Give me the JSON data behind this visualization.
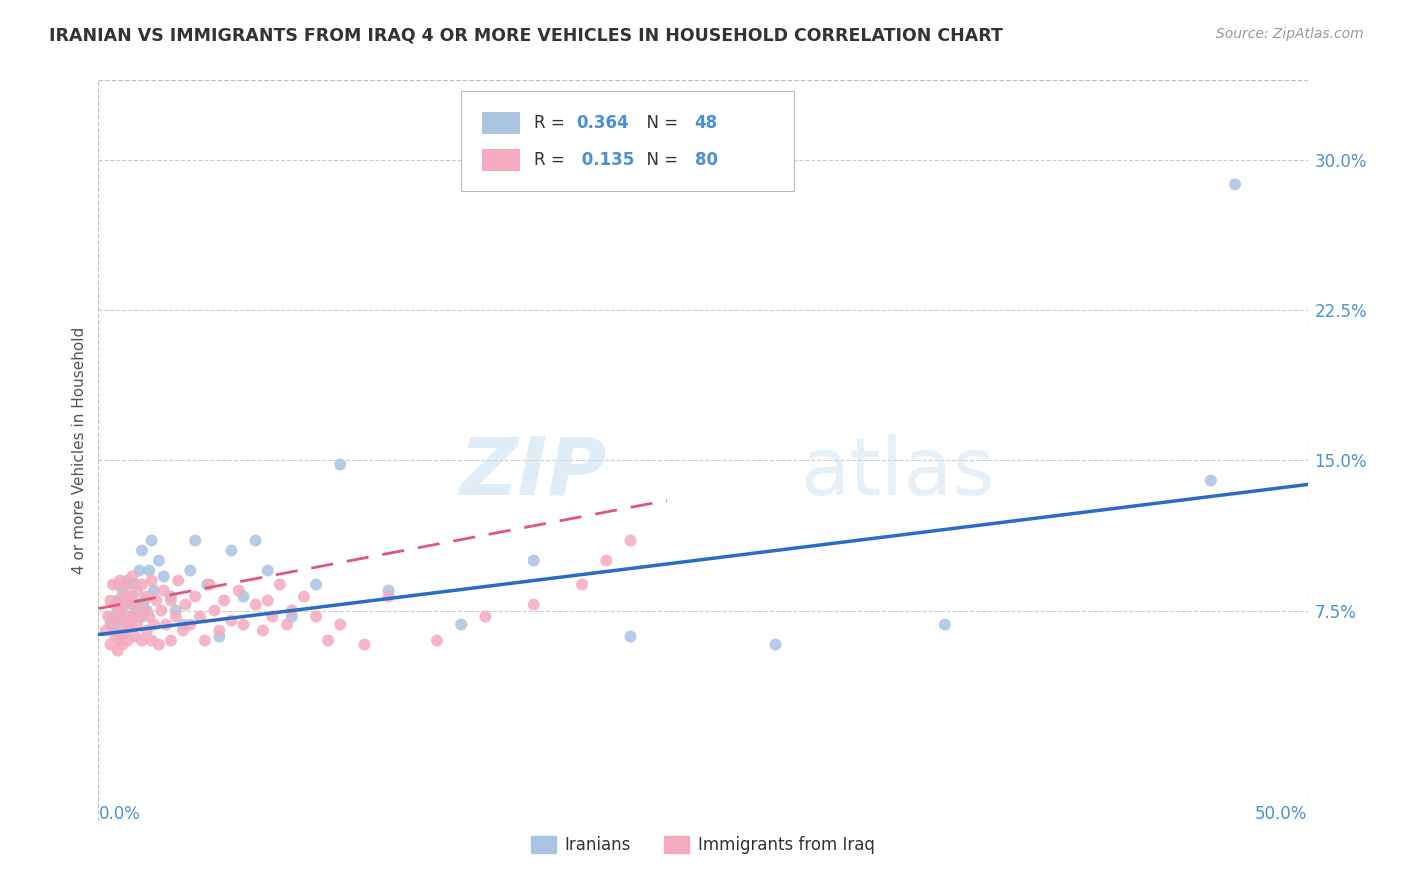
{
  "title": "IRANIAN VS IMMIGRANTS FROM IRAQ 4 OR MORE VEHICLES IN HOUSEHOLD CORRELATION CHART",
  "source": "Source: ZipAtlas.com",
  "ylabel": "4 or more Vehicles in Household",
  "yticks": [
    "7.5%",
    "15.0%",
    "22.5%",
    "30.0%"
  ],
  "ytick_vals": [
    0.075,
    0.15,
    0.225,
    0.3
  ],
  "xrange": [
    0.0,
    0.5
  ],
  "yrange": [
    -0.03,
    0.34
  ],
  "r_iranian": "0.364",
  "n_iranian": "48",
  "r_iraqi": "0.135",
  "n_iraqi": "80",
  "color_iranian": "#aac4e2",
  "color_iraqi": "#f5aabf",
  "color_iranian_line": "#2b6cc4",
  "color_iraqi_line": "#e05878",
  "legend_label_iranian": "Iranians",
  "legend_label_iraqi": "Immigrants from Iraq",
  "watermark_zip": "ZIP",
  "watermark_atlas": "atlas",
  "title_color": "#333333",
  "axis_label_color": "#4a90d9",
  "iranians_x": [
    0.005,
    0.006,
    0.007,
    0.008,
    0.008,
    0.009,
    0.01,
    0.01,
    0.011,
    0.012,
    0.012,
    0.013,
    0.014,
    0.015,
    0.015,
    0.016,
    0.017,
    0.018,
    0.018,
    0.019,
    0.02,
    0.021,
    0.022,
    0.023,
    0.025,
    0.027,
    0.03,
    0.032,
    0.035,
    0.038,
    0.04,
    0.045,
    0.05,
    0.055,
    0.06,
    0.065,
    0.07,
    0.08,
    0.09,
    0.1,
    0.12,
    0.15,
    0.18,
    0.22,
    0.28,
    0.35,
    0.46,
    0.47
  ],
  "iranians_y": [
    0.068,
    0.072,
    0.065,
    0.08,
    0.075,
    0.07,
    0.063,
    0.085,
    0.078,
    0.072,
    0.09,
    0.068,
    0.082,
    0.074,
    0.088,
    0.078,
    0.095,
    0.072,
    0.105,
    0.08,
    0.075,
    0.095,
    0.11,
    0.085,
    0.1,
    0.092,
    0.082,
    0.075,
    0.068,
    0.095,
    0.11,
    0.088,
    0.062,
    0.105,
    0.082,
    0.11,
    0.095,
    0.072,
    0.088,
    0.148,
    0.085,
    0.068,
    0.1,
    0.062,
    0.058,
    0.068,
    0.14,
    0.288
  ],
  "iraqis_x": [
    0.003,
    0.004,
    0.005,
    0.005,
    0.006,
    0.006,
    0.007,
    0.007,
    0.008,
    0.008,
    0.008,
    0.009,
    0.009,
    0.009,
    0.01,
    0.01,
    0.01,
    0.011,
    0.011,
    0.012,
    0.012,
    0.013,
    0.013,
    0.014,
    0.014,
    0.015,
    0.015,
    0.016,
    0.016,
    0.017,
    0.018,
    0.018,
    0.019,
    0.02,
    0.02,
    0.021,
    0.022,
    0.022,
    0.023,
    0.024,
    0.025,
    0.026,
    0.027,
    0.028,
    0.03,
    0.03,
    0.032,
    0.033,
    0.035,
    0.036,
    0.038,
    0.04,
    0.042,
    0.044,
    0.046,
    0.048,
    0.05,
    0.052,
    0.055,
    0.058,
    0.06,
    0.065,
    0.068,
    0.07,
    0.072,
    0.075,
    0.078,
    0.08,
    0.085,
    0.09,
    0.095,
    0.1,
    0.11,
    0.12,
    0.14,
    0.16,
    0.18,
    0.2,
    0.21,
    0.22
  ],
  "iraqis_y": [
    0.065,
    0.072,
    0.058,
    0.08,
    0.068,
    0.088,
    0.062,
    0.078,
    0.055,
    0.072,
    0.088,
    0.06,
    0.075,
    0.09,
    0.058,
    0.07,
    0.082,
    0.065,
    0.078,
    0.06,
    0.088,
    0.068,
    0.082,
    0.072,
    0.092,
    0.062,
    0.078,
    0.068,
    0.085,
    0.072,
    0.06,
    0.088,
    0.075,
    0.065,
    0.082,
    0.072,
    0.06,
    0.09,
    0.068,
    0.08,
    0.058,
    0.075,
    0.085,
    0.068,
    0.06,
    0.08,
    0.072,
    0.09,
    0.065,
    0.078,
    0.068,
    0.082,
    0.072,
    0.06,
    0.088,
    0.075,
    0.065,
    0.08,
    0.07,
    0.085,
    0.068,
    0.078,
    0.065,
    0.08,
    0.072,
    0.088,
    0.068,
    0.075,
    0.082,
    0.072,
    0.06,
    0.068,
    0.058,
    0.082,
    0.06,
    0.072,
    0.078,
    0.088,
    0.1,
    0.11
  ],
  "iran_line_x0": 0.0,
  "iran_line_x1": 0.5,
  "iran_line_y0": 0.063,
  "iran_line_y1": 0.138,
  "iraq_line_x0": 0.0,
  "iraq_line_x1": 0.235,
  "iraq_line_y0": 0.076,
  "iraq_line_y1": 0.13
}
